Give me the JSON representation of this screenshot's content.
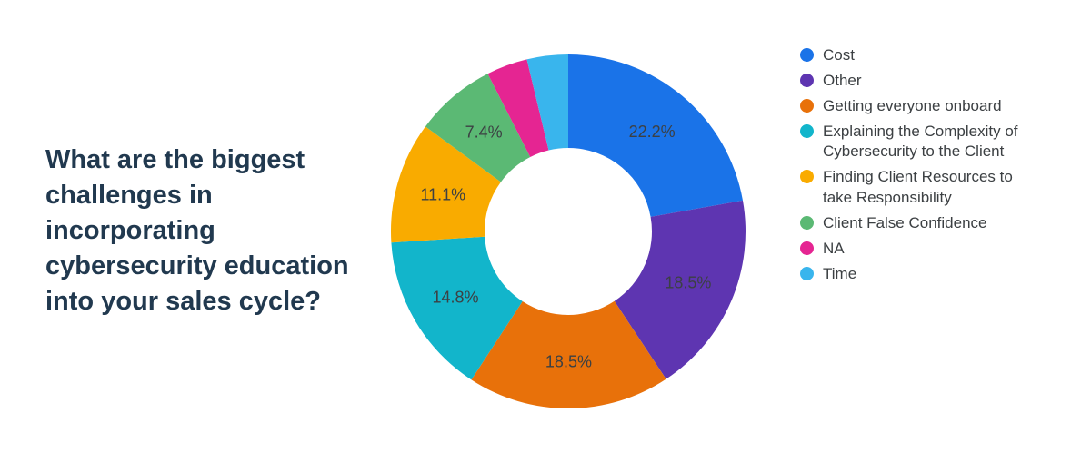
{
  "title": "What are the biggest challenges in incorporating cybersecurity education into your sales cycle?",
  "chart": {
    "type": "donut",
    "background_color": "#ffffff",
    "title_color": "#21394f",
    "title_fontsize": 29,
    "label_fontsize": 18,
    "label_color": "#3c4043",
    "legend_fontsize": 17,
    "legend_color": "#3c4043",
    "outer_radius": 195,
    "inner_radius": 92,
    "start_angle_deg": -90,
    "direction": "clockwise",
    "slices": [
      {
        "label": "Cost",
        "value": 22.2,
        "color": "#1a73e8",
        "show_pct": true
      },
      {
        "label": "Other",
        "value": 18.5,
        "color": "#5e35b1",
        "show_pct": true
      },
      {
        "label": "Getting everyone onboard",
        "value": 18.5,
        "color": "#e8710a",
        "show_pct": true
      },
      {
        "label": "Explaining the Complexity of Cybersecurity to the Client",
        "value": 14.8,
        "color": "#12b5cb",
        "show_pct": true
      },
      {
        "label": "Finding Client Resources to take Responsibility",
        "value": 11.1,
        "color": "#f9ab00",
        "show_pct": true
      },
      {
        "label": "Client False Confidence",
        "value": 7.4,
        "color": "#5bb974",
        "show_pct": true
      },
      {
        "label": "NA",
        "value": 3.75,
        "color": "#e52592",
        "show_pct": false
      },
      {
        "label": "Time",
        "value": 3.75,
        "color": "#39b5ed",
        "show_pct": false
      }
    ]
  }
}
